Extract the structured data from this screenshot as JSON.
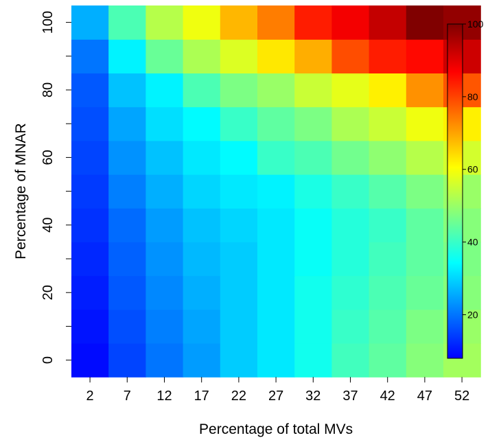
{
  "chart_data": {
    "type": "heatmap",
    "xlabel": "Percentage of total MVs",
    "ylabel": "Percentage of MNAR",
    "x": [
      2,
      7,
      12,
      17,
      22,
      27,
      32,
      37,
      42,
      47,
      52
    ],
    "y": [
      0,
      10,
      20,
      30,
      40,
      50,
      60,
      70,
      80,
      90,
      100
    ],
    "x_tick_labels": [
      "2",
      "7",
      "12",
      "17",
      "22",
      "27",
      "32",
      "37",
      "42",
      "47",
      "52"
    ],
    "y_tick_labels": [
      "0",
      "20",
      "40",
      "60",
      "80",
      "100"
    ],
    "color_scale": {
      "min": 8,
      "max": 100,
      "tick_labels": [
        "20",
        "40",
        "60",
        "80",
        "100"
      ],
      "colors": [
        "#0000ff",
        "#0080ff",
        "#00ffff",
        "#80ff80",
        "#ffff00",
        "#ff8000",
        "#ff0000",
        "#800000"
      ],
      "placement": "inside-right"
    },
    "values": [
      [
        9,
        15,
        20,
        24,
        29,
        32,
        36,
        41,
        44,
        48,
        51
      ],
      [
        10,
        16,
        21,
        25,
        29,
        32,
        36,
        40,
        43,
        47,
        50
      ],
      [
        11,
        17,
        22,
        26,
        29,
        32,
        36,
        39,
        42,
        45,
        48
      ],
      [
        12,
        18,
        23,
        27,
        29,
        32,
        35,
        38,
        41,
        44,
        47
      ],
      [
        13,
        19,
        24,
        28,
        30,
        32,
        35,
        38,
        40,
        44,
        48
      ],
      [
        14,
        21,
        26,
        30,
        32,
        33,
        37,
        40,
        43,
        47,
        50
      ],
      [
        15,
        23,
        28,
        32,
        34,
        40,
        42,
        46,
        49,
        53,
        56
      ],
      [
        16,
        25,
        31,
        34,
        40,
        44,
        47,
        52,
        55,
        59,
        62
      ],
      [
        17,
        28,
        33,
        42,
        47,
        50,
        55,
        58,
        62,
        72,
        78
      ],
      [
        20,
        33,
        45,
        52,
        57,
        63,
        69,
        79,
        84,
        86,
        92
      ],
      [
        26,
        42,
        53,
        59,
        68,
        74,
        84,
        88,
        93,
        100,
        98
      ]
    ]
  }
}
